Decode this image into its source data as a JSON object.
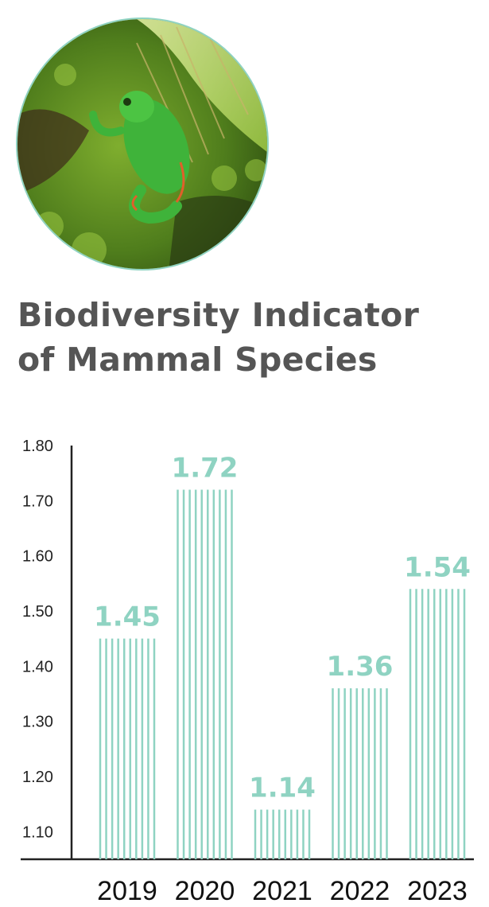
{
  "title_lines": [
    "Biodiversity Indicator",
    "of Mammal Species"
  ],
  "photo_icon": "frog-on-moss",
  "colors": {
    "bar": "#8fd3c2",
    "label": "#8fd3c2",
    "axis": "#222222",
    "title": "#555555",
    "ring": "#8fd3c2"
  },
  "chart_data": {
    "type": "bar",
    "title": "Biodiversity Indicator of Mammal Species",
    "categories": [
      "2019",
      "2020",
      "2021",
      "2022",
      "2023"
    ],
    "values": [
      1.45,
      1.72,
      1.14,
      1.36,
      1.54
    ],
    "value_labels": [
      "1.45",
      "1.72",
      "1.14",
      "1.36",
      "1.54"
    ],
    "xlabel": "",
    "ylabel": "",
    "ylim": [
      1.05,
      1.8
    ],
    "yticks": [
      1.1,
      1.2,
      1.3,
      1.4,
      1.5,
      1.6,
      1.7,
      1.8
    ],
    "ytick_labels": [
      "1.10",
      "1.20",
      "1.30",
      "1.40",
      "1.50",
      "1.60",
      "1.70",
      "1.80"
    ],
    "grid": false,
    "legend": "none"
  }
}
